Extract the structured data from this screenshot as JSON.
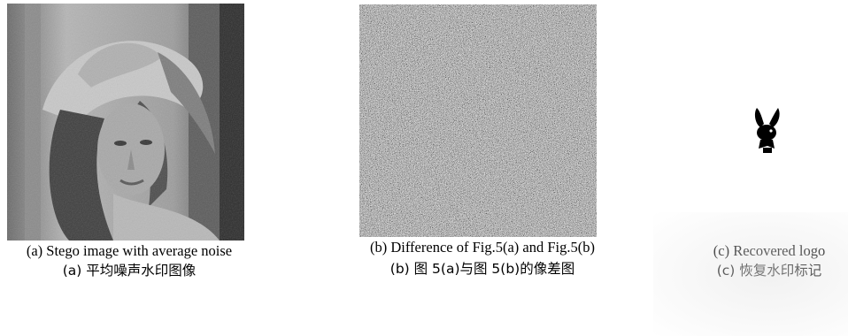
{
  "figure": {
    "panels": [
      {
        "id": "a",
        "caption_en": "(a) Stego image with average noise",
        "caption_cn": "(a)  平均噪声水印图像"
      },
      {
        "id": "b",
        "caption_en": "(b) Difference of Fig.5(a) and Fig.5(b)",
        "caption_cn": "(b)  图 5(a)与图 5(b)的像差图"
      },
      {
        "id": "c",
        "caption_en": "(c) Recovered logo",
        "caption_cn": "(c)  恢复水印标记"
      }
    ]
  }
}
